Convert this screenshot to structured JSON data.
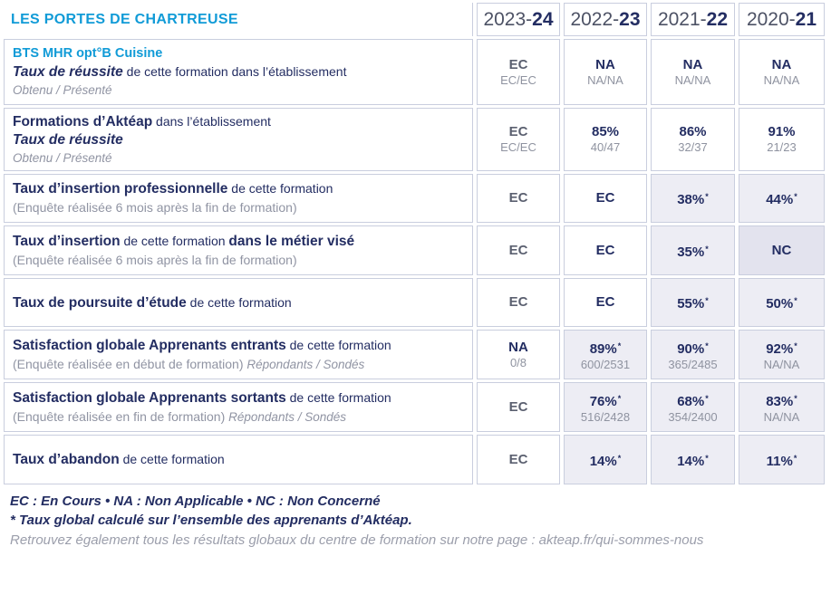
{
  "header": {
    "title": "LES PORTES DE CHARTREUSE",
    "years": [
      {
        "prefix": "2023-",
        "suffix": "24"
      },
      {
        "prefix": "2022-",
        "suffix": "23"
      },
      {
        "prefix": "2021-",
        "suffix": "22"
      },
      {
        "prefix": "2020-",
        "suffix": "21"
      }
    ]
  },
  "colors": {
    "accent_blue": "#119bd7",
    "navy": "#232d62",
    "muted_value": "#5b6070",
    "gray_text": "#9094a3",
    "border": "#c9cede",
    "shaded_bg": "#ededf4",
    "shaded_dark_bg": "#e3e3ee"
  },
  "rows": [
    {
      "id": "bts-taux-reussite",
      "label": [
        [
          {
            "t": "BTS MHR opt°B Cuisine",
            "s": "blue"
          }
        ],
        [
          {
            "t": "Taux de réussite",
            "s": "bi"
          },
          {
            "t": " de cette formation dans l’établissement",
            "s": "n"
          }
        ],
        [
          {
            "t": "Obtenu / Présenté",
            "s": "gi"
          }
        ]
      ],
      "cells": [
        {
          "main": "EC",
          "muted": true,
          "sub": "EC/EC"
        },
        {
          "main": "NA",
          "sub": "NA/NA"
        },
        {
          "main": "NA",
          "sub": "NA/NA"
        },
        {
          "main": "NA",
          "sub": "NA/NA"
        }
      ]
    },
    {
      "id": "akteap-taux-reussite",
      "label": [
        [
          {
            "t": "Formations d’Aktéap",
            "s": "b"
          },
          {
            "t": " dans l’établissement",
            "s": "n"
          }
        ],
        [
          {
            "t": "Taux de réussite",
            "s": "bi"
          }
        ],
        [
          {
            "t": "Obtenu / Présenté",
            "s": "gi"
          }
        ]
      ],
      "cells": [
        {
          "main": "EC",
          "muted": true,
          "sub": "EC/EC"
        },
        {
          "main": "85%",
          "sub": "40/47"
        },
        {
          "main": "86%",
          "sub": "32/37"
        },
        {
          "main": "91%",
          "sub": "21/23"
        }
      ]
    },
    {
      "id": "insertion-professionnelle",
      "label": [
        [
          {
            "t": "Taux d’insertion professionnelle",
            "s": "b"
          },
          {
            "t": " de cette formation",
            "s": "n"
          }
        ],
        [
          {
            "t": "(Enquête réalisée 6 mois après la fin de formation)",
            "s": "g"
          }
        ]
      ],
      "cells": [
        {
          "main": "EC",
          "muted": true
        },
        {
          "main": "EC"
        },
        {
          "main": "38%",
          "star": true,
          "shade": "light"
        },
        {
          "main": "44%",
          "star": true,
          "shade": "light"
        }
      ]
    },
    {
      "id": "insertion-metier-vise",
      "label": [
        [
          {
            "t": "Taux d’insertion",
            "s": "b"
          },
          {
            "t": " de cette formation ",
            "s": "n"
          },
          {
            "t": "dans le métier visé",
            "s": "b"
          }
        ],
        [
          {
            "t": "(Enquête réalisée 6 mois après la fin de formation)",
            "s": "g"
          }
        ]
      ],
      "cells": [
        {
          "main": "EC",
          "muted": true
        },
        {
          "main": "EC"
        },
        {
          "main": "35%",
          "star": true,
          "shade": "light"
        },
        {
          "main": "NC",
          "shade": "dark"
        }
      ]
    },
    {
      "id": "poursuite-etude",
      "label": [
        [
          {
            "t": "Taux de poursuite d’étude",
            "s": "b"
          },
          {
            "t": " de cette formation",
            "s": "n"
          }
        ]
      ],
      "cells": [
        {
          "main": "EC",
          "muted": true
        },
        {
          "main": "EC"
        },
        {
          "main": "55%",
          "star": true,
          "shade": "light"
        },
        {
          "main": "50%",
          "star": true,
          "shade": "light"
        }
      ]
    },
    {
      "id": "satisfaction-entrants",
      "label": [
        [
          {
            "t": "Satisfaction globale Apprenants entrants",
            "s": "b"
          },
          {
            "t": " de cette formation",
            "s": "n"
          }
        ],
        [
          {
            "t": "(Enquête réalisée en début de formation) ",
            "s": "g"
          },
          {
            "t": "Répondants / Sondés",
            "s": "gi"
          }
        ]
      ],
      "cells": [
        {
          "main": "NA",
          "sub": "0/8"
        },
        {
          "main": "89%",
          "star": true,
          "sub": "600/2531",
          "shade": "light"
        },
        {
          "main": "90%",
          "star": true,
          "sub": "365/2485",
          "shade": "light"
        },
        {
          "main": "92%",
          "star": true,
          "sub": "NA/NA",
          "shade": "light"
        }
      ]
    },
    {
      "id": "satisfaction-sortants",
      "label": [
        [
          {
            "t": "Satisfaction globale Apprenants sortants",
            "s": "b"
          },
          {
            "t": " de cette formation",
            "s": "n"
          }
        ],
        [
          {
            "t": "(Enquête réalisée en fin de formation) ",
            "s": "g"
          },
          {
            "t": "Répondants / Sondés",
            "s": "gi"
          }
        ]
      ],
      "cells": [
        {
          "main": "EC",
          "muted": true
        },
        {
          "main": "76%",
          "star": true,
          "sub": "516/2428",
          "shade": "light"
        },
        {
          "main": "68%",
          "star": true,
          "sub": "354/2400",
          "shade": "light"
        },
        {
          "main": "83%",
          "star": true,
          "sub": "NA/NA",
          "shade": "light"
        }
      ]
    },
    {
      "id": "abandon",
      "label": [
        [
          {
            "t": "Taux d’abandon",
            "s": "b"
          },
          {
            "t": " de cette formation",
            "s": "n"
          }
        ]
      ],
      "cells": [
        {
          "main": "EC",
          "muted": true
        },
        {
          "main": "14%",
          "star": true,
          "shade": "light"
        },
        {
          "main": "14%",
          "star": true,
          "shade": "light"
        },
        {
          "main": "11%",
          "star": true,
          "shade": "light"
        }
      ]
    }
  ],
  "star_symbol": "*",
  "footer": {
    "legend": "EC : En Cours  •  NA : Non Applicable  •  NC : Non Concerné",
    "star_note": "* Taux global calculé sur l’ensemble des apprenants d’Aktéap.",
    "more_info": "Retrouvez également tous les résultats globaux du centre de formation sur notre page : akteap.fr/qui-sommes-nous"
  }
}
